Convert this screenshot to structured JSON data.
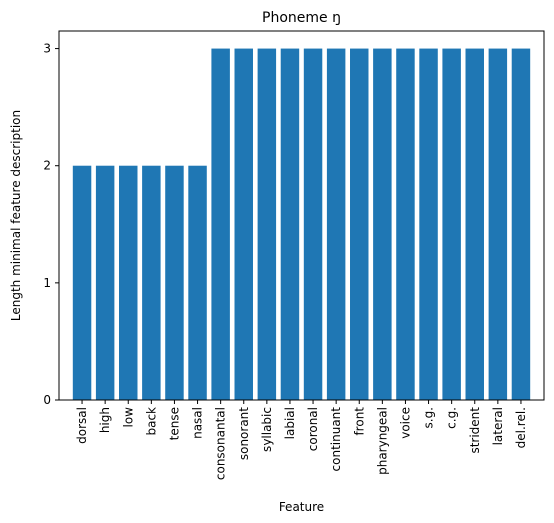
{
  "chart_data": {
    "type": "bar",
    "title": "Phoneme ŋ",
    "xlabel": "Feature",
    "ylabel": "Length minimal feature description",
    "categories": [
      "dorsal",
      "high",
      "low",
      "back",
      "tense",
      "nasal",
      "consonantal",
      "sonorant",
      "syllabic",
      "labial",
      "coronal",
      "continuant",
      "front",
      "pharyngeal",
      "voice",
      "s.g.",
      "c.g.",
      "strident",
      "lateral",
      "del.rel."
    ],
    "values": [
      2,
      2,
      2,
      2,
      2,
      2,
      3,
      3,
      3,
      3,
      3,
      3,
      3,
      3,
      3,
      3,
      3,
      3,
      3,
      3
    ],
    "ylim": [
      0,
      3.15
    ],
    "yticks": [
      0,
      1,
      2,
      3
    ],
    "ytick_labels": [
      "0",
      "1",
      "2",
      "3"
    ],
    "grid": false,
    "bar_color": "#1f77b4"
  }
}
